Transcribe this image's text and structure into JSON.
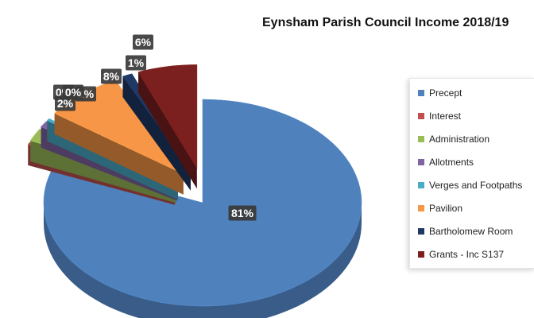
{
  "chart_data": {
    "type": "pie",
    "title": "Eynsham Parish Council Income 2018/19",
    "categories": [
      "Precept",
      "Interest",
      "Administration",
      "Allotments",
      "Verges and Footpaths",
      "Pavilion",
      "Bartholomew Room",
      "Grants - Inc S137"
    ],
    "values": [
      81,
      0,
      2,
      1,
      0,
      8,
      1,
      6
    ],
    "data_labels": [
      "81%",
      "0%",
      "2%",
      "1%",
      "0%",
      "8%",
      "1%",
      "6%"
    ],
    "colors": [
      "#4f81bd",
      "#c0504d",
      "#9bbb59",
      "#8064a2",
      "#4bacc6",
      "#f79646",
      "#1f3864",
      "#7b1f1f"
    ],
    "legend_position": "right",
    "exploded": true,
    "style": "3d"
  }
}
